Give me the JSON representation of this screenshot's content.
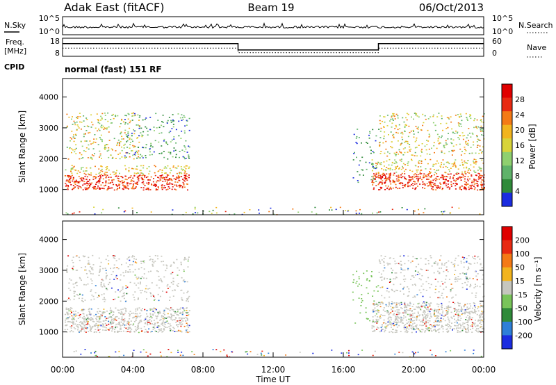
{
  "header": {
    "station": "Adak East (fitACF)",
    "beam": "Beam 19",
    "date": "06/Oct/2013"
  },
  "nsky_panel": {
    "left_label": "N.Sky",
    "right_label": "N.Search",
    "left_ticks": [
      "10^5",
      "10^0"
    ],
    "right_ticks": [
      "10^5",
      "10^0"
    ]
  },
  "freq_panel": {
    "left_label_1": "Freq.",
    "left_label_2": "[MHz]",
    "right_label": "Nave",
    "left_ticks": [
      "18",
      "8"
    ],
    "right_ticks": [
      "60",
      "0"
    ],
    "freq_steps": [
      {
        "start": 0,
        "end": 10,
        "level": 0.7
      },
      {
        "start": 10,
        "end": 18,
        "level": 0.35
      },
      {
        "start": 18,
        "end": 24,
        "level": 0.7
      }
    ],
    "nave_steps": [
      {
        "start": 0,
        "end": 10,
        "level": 0.45
      },
      {
        "start": 10,
        "end": 18,
        "level": 0.2
      },
      {
        "start": 18,
        "end": 24,
        "level": 0.45
      }
    ]
  },
  "cpid": {
    "label": "CPID",
    "text": "normal (fast) 151 RF"
  },
  "chart_data": [
    {
      "type": "heatmap",
      "name_panel": "power",
      "ylabel": "Slant Range [km]",
      "y_ticks": [
        "1000",
        "2000",
        "3000",
        "4000"
      ],
      "ylim": [
        180,
        4600
      ],
      "colorbar": {
        "label": "Power [dB]",
        "ticks": [
          "4",
          "8",
          "12",
          "16",
          "20",
          "24",
          "28"
        ],
        "colors": [
          "#1b2ce0",
          "#2f8a3a",
          "#5fb36a",
          "#8fd06f",
          "#d8d43a",
          "#f2b41e",
          "#f47a16",
          "#e82a12",
          "#e00000"
        ]
      }
    },
    {
      "type": "heatmap",
      "name_panel": "velocity",
      "ylabel": "Slant Range [km]",
      "y_ticks": [
        "1000",
        "2000",
        "3000",
        "4000"
      ],
      "ylim": [
        180,
        4600
      ],
      "colorbar": {
        "label": "Velocity [m s⁻¹]",
        "ticks": [
          "200",
          "100",
          "50",
          "15",
          "-15",
          "-50",
          "-100",
          "-200"
        ],
        "colors": [
          "#1b2ce0",
          "#2e7fd8",
          "#2f8a3a",
          "#79c45a",
          "#c6c6be",
          "#f2b41e",
          "#f47a16",
          "#e82a12",
          "#e00000"
        ]
      }
    }
  ],
  "x_axis": {
    "label": "Time UT",
    "ticks": [
      "00:00",
      "04:00",
      "08:00",
      "12:00",
      "16:00",
      "20:00",
      "00:00"
    ]
  }
}
